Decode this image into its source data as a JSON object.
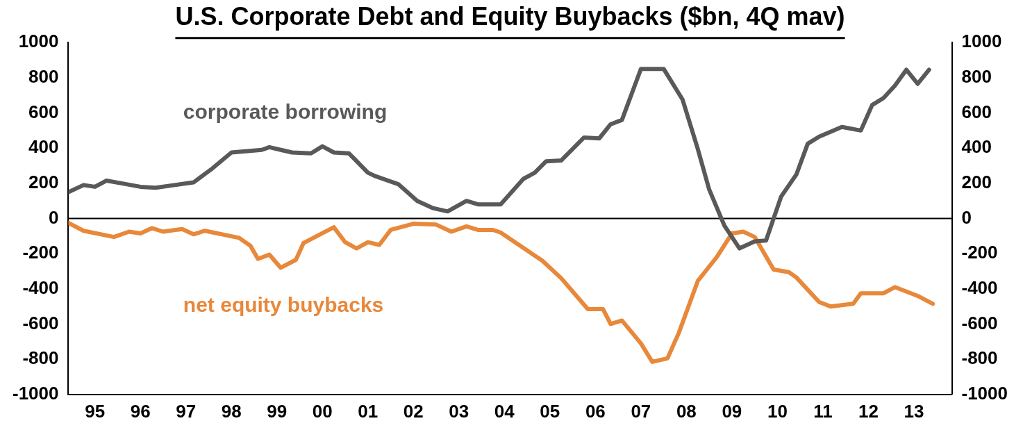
{
  "chart_data": {
    "type": "line",
    "title": "U.S. Corporate Debt and Equity Buybacks ($bn, 4Q mav)",
    "xlim": [
      "1994-12",
      "2014-05"
    ],
    "xticks": [
      {
        "value": "1995-07",
        "label": "95"
      },
      {
        "value": "1996-07",
        "label": "96"
      },
      {
        "value": "1997-07",
        "label": "97"
      },
      {
        "value": "1998-07",
        "label": "98"
      },
      {
        "value": "1999-07",
        "label": "99"
      },
      {
        "value": "2000-07",
        "label": "00"
      },
      {
        "value": "2001-07",
        "label": "01"
      },
      {
        "value": "2002-07",
        "label": "02"
      },
      {
        "value": "2003-07",
        "label": "03"
      },
      {
        "value": "2004-07",
        "label": "04"
      },
      {
        "value": "2005-07",
        "label": "05"
      },
      {
        "value": "2006-07",
        "label": "06"
      },
      {
        "value": "2007-07",
        "label": "07"
      },
      {
        "value": "2008-07",
        "label": "08"
      },
      {
        "value": "2009-07",
        "label": "09"
      },
      {
        "value": "2010-07",
        "label": "10"
      },
      {
        "value": "2011-07",
        "label": "11"
      },
      {
        "value": "2012-07",
        "label": "12"
      },
      {
        "value": "2013-07",
        "label": "13"
      }
    ],
    "ylim": [
      -1000,
      1000
    ],
    "yticks": [
      -1000,
      -800,
      -600,
      -400,
      -200,
      0,
      200,
      400,
      600,
      800,
      1000
    ],
    "y2lim": [
      -1000,
      1000
    ],
    "y2ticks": [
      -1000,
      -800,
      -600,
      -400,
      -200,
      0,
      200,
      400,
      600,
      800,
      1000
    ],
    "grid": false,
    "legend": false,
    "marker": "none",
    "line_style": "solid",
    "ref_lines": [
      {
        "axis": "y",
        "value": 0,
        "color": "#000000"
      }
    ],
    "series": [
      {
        "name": "corporate borrowing",
        "color": "#595959",
        "x": [
          "1994-12",
          "1995-04",
          "1995-07",
          "1995-10",
          "1996-02",
          "1996-07",
          "1996-11",
          "1997-04",
          "1997-09",
          "1998-02",
          "1998-07",
          "1999-03",
          "1999-05",
          "1999-08",
          "1999-11",
          "2000-04",
          "2000-07",
          "2000-10",
          "2001-02",
          "2001-07",
          "2001-09",
          "2002-03",
          "2002-08",
          "2002-12",
          "2003-04",
          "2003-09",
          "2003-12",
          "2004-06",
          "2004-12",
          "2005-03",
          "2005-06",
          "2005-10",
          "2006-04",
          "2006-08",
          "2006-11",
          "2007-02",
          "2007-07",
          "2008-01",
          "2008-06",
          "2008-10",
          "2009-01",
          "2009-05",
          "2009-09",
          "2010-01",
          "2010-04",
          "2010-08",
          "2010-12",
          "2011-03",
          "2011-06",
          "2011-12",
          "2012-05",
          "2012-08",
          "2012-11",
          "2013-02",
          "2013-05",
          "2013-08",
          "2013-11"
        ],
        "values": [
          150,
          190,
          180,
          215,
          200,
          180,
          175,
          190,
          205,
          285,
          375,
          390,
          405,
          390,
          375,
          370,
          410,
          375,
          370,
          260,
          240,
          195,
          100,
          60,
          40,
          100,
          80,
          80,
          225,
          260,
          325,
          330,
          460,
          455,
          535,
          560,
          850,
          850,
          675,
          395,
          165,
          -40,
          -170,
          -130,
          -125,
          125,
          250,
          425,
          465,
          520,
          500,
          645,
          685,
          755,
          845,
          765,
          845
        ]
      },
      {
        "name": "net equity buybacks",
        "color": "#e8883a",
        "x": [
          "1994-12",
          "1995-04",
          "1995-12",
          "1996-04",
          "1996-07",
          "1996-10",
          "1997-01",
          "1997-06",
          "1997-09",
          "1997-12",
          "1998-09",
          "1998-12",
          "1999-02",
          "1999-05",
          "1999-08",
          "1999-12",
          "2000-02",
          "2000-10",
          "2001-01",
          "2001-04",
          "2001-07",
          "2001-10",
          "2002-01",
          "2002-07",
          "2003-01",
          "2003-05",
          "2003-09",
          "2003-12",
          "2004-04",
          "2004-06",
          "2005-05",
          "2005-10",
          "2006-02",
          "2006-05",
          "2006-09",
          "2006-11",
          "2007-02",
          "2007-07",
          "2007-10",
          "2008-02",
          "2008-05",
          "2008-10",
          "2009-03",
          "2009-07",
          "2009-10",
          "2010-01",
          "2010-06",
          "2010-10",
          "2010-12",
          "2011-06",
          "2011-09",
          "2012-03",
          "2012-05",
          "2012-11",
          "2013-02",
          "2013-08",
          "2013-12"
        ],
        "values": [
          -25,
          -70,
          -105,
          -75,
          -85,
          -55,
          -75,
          -60,
          -90,
          -70,
          -110,
          -155,
          -230,
          -205,
          -280,
          -235,
          -140,
          -50,
          -135,
          -170,
          -135,
          -150,
          -65,
          -30,
          -35,
          -75,
          -45,
          -65,
          -65,
          -80,
          -240,
          -340,
          -440,
          -515,
          -515,
          -600,
          -580,
          -710,
          -815,
          -795,
          -650,
          -355,
          -220,
          -85,
          -75,
          -105,
          -290,
          -305,
          -335,
          -475,
          -500,
          -485,
          -425,
          -425,
          -390,
          -440,
          -485
        ]
      }
    ]
  }
}
